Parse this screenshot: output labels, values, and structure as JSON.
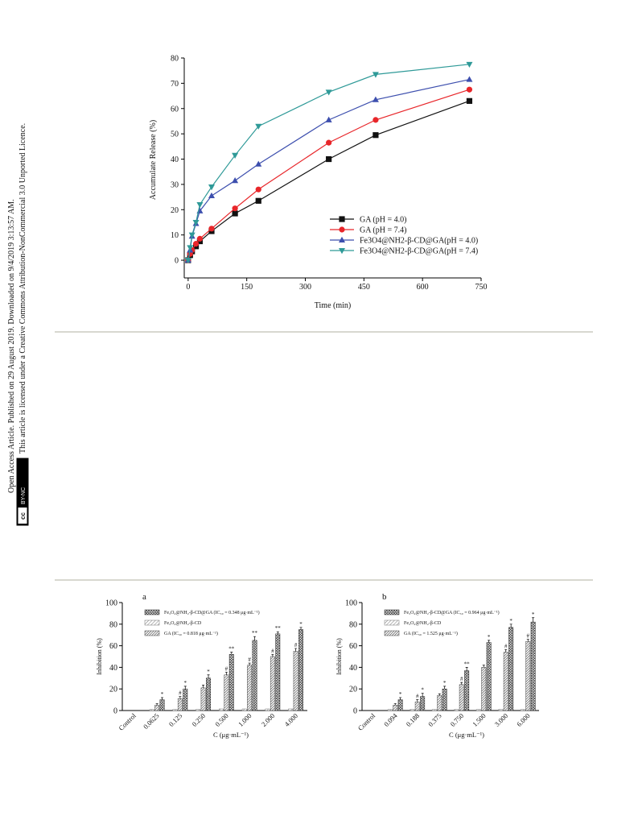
{
  "sidebar": {
    "line1": "Open Access Article. Published on 29 August 2019. Downloaded on 9/4/2019 3:13:57 AM.",
    "line2": "This article is licensed under a Creative Commons Attribution-NonCommercial 3.0 Unported Licence.",
    "badge_logo": "cc",
    "badge_label": "BY-NC"
  },
  "chart_data": [
    {
      "type": "line",
      "xlabel": "Time (min)",
      "ylabel": "Accumulate Release (%)",
      "x": [
        0,
        5,
        10,
        20,
        30,
        60,
        120,
        180,
        360,
        480,
        720
      ],
      "xlim": [
        -10,
        750
      ],
      "ylim": [
        -7,
        80
      ],
      "xticks": [
        0,
        150,
        300,
        450,
        600,
        750
      ],
      "yticks": [
        0,
        10,
        20,
        30,
        40,
        50,
        60,
        70,
        80
      ],
      "series": [
        {
          "name": "GA (pH = 4.0)",
          "color": "#111111",
          "marker": "square",
          "values": [
            0,
            2,
            3.5,
            5.5,
            7.5,
            11.5,
            18.5,
            23.5,
            40,
            49.5,
            63
          ]
        },
        {
          "name": "GA (pH = 7.4)",
          "color": "#e8262a",
          "marker": "circle",
          "values": [
            0,
            2.5,
            4,
            6.5,
            8.5,
            12.5,
            20.5,
            28,
            46.5,
            55.5,
            67.5
          ]
        },
        {
          "name": "Fe3O4@NH2-β-CD@GA(pH = 4.0)",
          "color": "#3d4fae",
          "marker": "triangle-up",
          "values": [
            0,
            4,
            9.5,
            14.5,
            19.5,
            25.5,
            31.5,
            38,
            55.5,
            63.5,
            71.5
          ]
        },
        {
          "name": "Fe3O4@NH2-β-CD@GA(pH = 7.4)",
          "color": "#2f9a98",
          "marker": "triangle-down",
          "values": [
            0,
            5,
            10,
            15,
            22,
            29,
            41.5,
            53,
            66.5,
            73.5,
            77.5
          ]
        }
      ]
    },
    {
      "type": "bar",
      "panel": "a",
      "xlabel": "C (μg·mL⁻¹)",
      "ylabel": "Inhibition (%)",
      "categories": [
        "Control",
        "0.0625",
        "0.125",
        "0.250",
        "0.500",
        "1.000",
        "2.000",
        "4.000"
      ],
      "ylim": [
        0,
        100
      ],
      "yticks": [
        0,
        20,
        40,
        60,
        80,
        100
      ],
      "series": [
        {
          "name": "Fe₃O₄@NH₂-β-CD@GA (IC₅₀ = 0.348 μg·mL⁻¹)",
          "color": "#222222",
          "hatch": "cross",
          "values": [
            0,
            10,
            20,
            30,
            52,
            65,
            71,
            75
          ],
          "errors": [
            0,
            2,
            2.5,
            3,
            2,
            3.5,
            2,
            2
          ],
          "markers": [
            null,
            "*",
            "*",
            "*",
            "**",
            "**",
            "**",
            "*"
          ]
        },
        {
          "name": "Fe₃O₄@NH₂-β-CD",
          "color": "#777777",
          "hatch": "diag",
          "values": [
            0,
            1,
            1,
            1,
            1.5,
            1.5,
            1.5,
            1.5
          ],
          "errors": [
            0,
            0,
            0,
            0,
            0,
            0,
            0,
            0
          ],
          "markers": [
            null,
            null,
            null,
            null,
            null,
            null,
            null,
            null
          ]
        },
        {
          "name": "GA (IC₅₀ = 0.818 μg·mL⁻¹)",
          "color": "#444444",
          "hatch": "diag-dense",
          "values": [
            0,
            5,
            11,
            21,
            33,
            42,
            50,
            55
          ],
          "errors": [
            0,
            1.5,
            2,
            2.5,
            2.5,
            2,
            2,
            2.5
          ],
          "markers": [
            null,
            null,
            "#",
            null,
            "#",
            "#",
            "#",
            "#"
          ]
        }
      ]
    },
    {
      "type": "bar",
      "panel": "b",
      "xlabel": "C (μg·mL⁻¹)",
      "ylabel": "Inhibition (%)",
      "categories": [
        "Control",
        "0.094",
        "0.188",
        "0.375",
        "0.750",
        "1.500",
        "3.000",
        "6.000"
      ],
      "ylim": [
        0,
        100
      ],
      "yticks": [
        0,
        20,
        40,
        60,
        80,
        100
      ],
      "series": [
        {
          "name": "Fe₃O₄@NH₂-β-CD@GA (IC₅₀ = 0.964 μg·mL⁻¹)",
          "color": "#222222",
          "hatch": "cross",
          "values": [
            0,
            10,
            13,
            20,
            37,
            63,
            77,
            82
          ],
          "errors": [
            0,
            2,
            3,
            2.5,
            3,
            2,
            3,
            4
          ],
          "markers": [
            null,
            "*",
            "*",
            "*",
            "**",
            "*",
            "*",
            "*"
          ]
        },
        {
          "name": "Fe₃O₄@NH₂-β-CD",
          "color": "#777777",
          "hatch": "diag",
          "values": [
            0,
            1,
            1,
            1,
            1,
            1,
            1,
            1
          ],
          "errors": [
            0,
            0,
            0,
            0,
            0,
            0,
            0,
            0
          ],
          "markers": [
            null,
            null,
            null,
            null,
            null,
            null,
            null,
            null
          ]
        },
        {
          "name": "GA (IC₅₀ = 1.525 μg·mL⁻¹)",
          "color": "#444444",
          "hatch": "diag-dense",
          "values": [
            0,
            5,
            8,
            14,
            24,
            40,
            54,
            64
          ],
          "errors": [
            0,
            1.5,
            2,
            1.5,
            2,
            2,
            2.5,
            2
          ],
          "markers": [
            null,
            null,
            "#",
            null,
            "#",
            null,
            "#",
            "#"
          ]
        }
      ]
    }
  ]
}
